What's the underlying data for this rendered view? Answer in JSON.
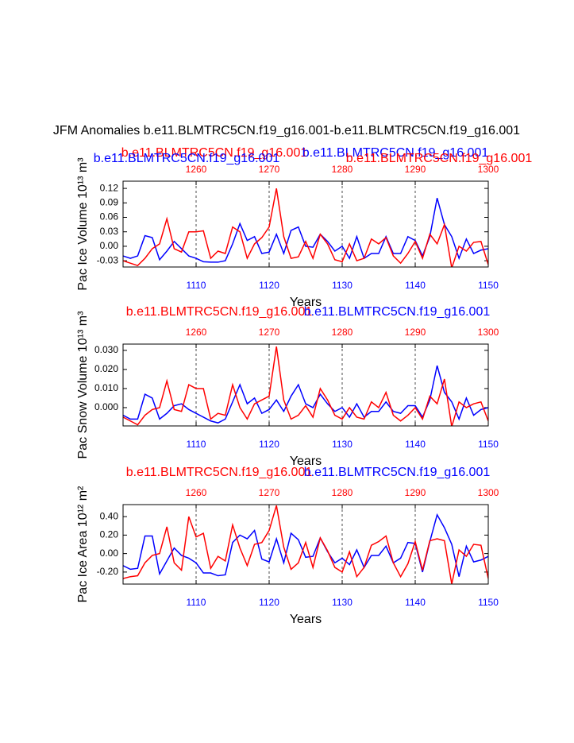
{
  "title": "JFM Anomalies b.e11.BLMTRC5CN.f19_g16.001-b.e11.BLMTRC5CN.f19_g16.001",
  "chart_data": [
    {
      "type": "line",
      "ylabel": "Pac Ice Volume 10¹³ m³",
      "xlabel": "Years",
      "xlim": [
        1100,
        1150
      ],
      "xticks": [
        1110,
        1120,
        1130,
        1140,
        1150
      ],
      "x2lim": [
        1250,
        1300
      ],
      "x2ticks": [
        1260,
        1270,
        1280,
        1290,
        1300
      ],
      "ylim": [
        -0.043,
        0.135
      ],
      "yticks": [
        0.12,
        0.09,
        0.06,
        0.03,
        {
          "value": 0,
          "label": "0.00"
        },
        -0.03
      ],
      "grid": "x",
      "annotations": [
        {
          "text": "b.e11.BLMTRC5CN.f19_g16.001",
          "color": "blue"
        },
        {
          "text": "b.e11.BLMTRC5CN.f19_g16.001",
          "color": "red"
        }
      ],
      "series": [
        {
          "name": "b.e11.BLMTRC5CN.f19_g16.001",
          "color": "blue",
          "axis": "x",
          "x": [
            1100,
            1101,
            1102,
            1103,
            1104,
            1105,
            1106,
            1107,
            1108,
            1109,
            1110,
            1111,
            1112,
            1113,
            1114,
            1115,
            1116,
            1117,
            1118,
            1119,
            1120,
            1121,
            1122,
            1123,
            1124,
            1125,
            1126,
            1127,
            1128,
            1129,
            1130,
            1131,
            1132,
            1133,
            1134,
            1135,
            1136,
            1137,
            1138,
            1139,
            1140,
            1141,
            1142,
            1143,
            1144,
            1145,
            1146,
            1147,
            1148,
            1149,
            1150
          ],
          "values": [
            -0.02,
            -0.025,
            -0.02,
            0.022,
            0.018,
            -0.028,
            -0.01,
            0.01,
            -0.005,
            -0.02,
            -0.025,
            -0.032,
            -0.033,
            -0.033,
            -0.03,
            0.005,
            0.047,
            0.012,
            0.02,
            -0.015,
            -0.012,
            0.025,
            -0.015,
            0.033,
            0.04,
            0.0,
            -0.002,
            0.025,
            0.01,
            -0.01,
            0.0,
            -0.025,
            0.02,
            -0.025,
            -0.015,
            -0.015,
            0.02,
            -0.015,
            -0.015,
            0.02,
            0.012,
            -0.02,
            0.02,
            0.1,
            0.045,
            0.02,
            -0.025,
            0.015,
            -0.015,
            -0.008,
            -0.005
          ]
        },
        {
          "name": "b.e11.BLMTRC5CN.f19_g16.001",
          "color": "red",
          "axis": "x2",
          "x": [
            1250,
            1251,
            1252,
            1253,
            1254,
            1255,
            1256,
            1257,
            1258,
            1259,
            1260,
            1261,
            1262,
            1263,
            1264,
            1265,
            1266,
            1267,
            1268,
            1269,
            1270,
            1271,
            1272,
            1273,
            1274,
            1275,
            1276,
            1277,
            1278,
            1279,
            1280,
            1281,
            1282,
            1283,
            1284,
            1285,
            1286,
            1287,
            1288,
            1289,
            1290,
            1291,
            1292,
            1293,
            1294,
            1295,
            1296,
            1297,
            1298,
            1299,
            1300
          ],
          "values": [
            -0.03,
            -0.035,
            -0.04,
            -0.025,
            -0.005,
            0.005,
            0.057,
            -0.005,
            -0.012,
            0.03,
            0.03,
            0.032,
            -0.025,
            -0.01,
            -0.015,
            0.04,
            0.03,
            -0.025,
            0.005,
            0.018,
            0.04,
            0.12,
            0.02,
            -0.025,
            -0.022,
            0.01,
            -0.025,
            0.025,
            0.005,
            -0.028,
            -0.032,
            0.005,
            -0.03,
            -0.025,
            0.015,
            0.005,
            0.018,
            -0.02,
            -0.035,
            -0.015,
            0.01,
            -0.025,
            0.025,
            0.005,
            0.045,
            -0.045,
            0.0,
            -0.01,
            0.008,
            0.01,
            -0.038
          ]
        }
      ]
    },
    {
      "type": "line",
      "ylabel": "Pac Snow Volume 10¹³ m³",
      "xlabel": "Years",
      "xlim": [
        1100,
        1150
      ],
      "xticks": [
        1110,
        1120,
        1130,
        1140,
        1150
      ],
      "x2lim": [
        1250,
        1300
      ],
      "x2ticks": [
        1260,
        1270,
        1280,
        1290,
        1300
      ],
      "ylim": [
        -0.0096,
        0.0333
      ],
      "yticks": [
        {
          "value": 0.03,
          "label": "0.030"
        },
        {
          "value": 0.02,
          "label": "0.020"
        },
        {
          "value": 0.01,
          "label": "0.010"
        },
        {
          "value": 0,
          "label": "0.000"
        }
      ],
      "grid": "x",
      "series": [
        {
          "name": "b.e11.BLMTRC5CN.f19_g16.001",
          "color": "blue",
          "axis": "x",
          "x": [
            1100,
            1101,
            1102,
            1103,
            1104,
            1105,
            1106,
            1107,
            1108,
            1109,
            1110,
            1111,
            1112,
            1113,
            1114,
            1115,
            1116,
            1117,
            1118,
            1119,
            1120,
            1121,
            1122,
            1123,
            1124,
            1125,
            1126,
            1127,
            1128,
            1129,
            1130,
            1131,
            1132,
            1133,
            1134,
            1135,
            1136,
            1137,
            1138,
            1139,
            1140,
            1141,
            1142,
            1143,
            1144,
            1145,
            1146,
            1147,
            1148,
            1149,
            1150
          ],
          "values": [
            -0.004,
            -0.006,
            -0.006,
            0.007,
            0.005,
            -0.006,
            -0.003,
            0.001,
            0.002,
            -0.001,
            -0.003,
            -0.005,
            -0.007,
            -0.008,
            -0.006,
            0.003,
            0.012,
            0.002,
            0.005,
            -0.003,
            -0.001,
            0.004,
            -0.002,
            0.006,
            0.012,
            0.002,
            0.0,
            0.007,
            0.002,
            -0.002,
            0.0,
            -0.005,
            0.002,
            -0.005,
            -0.002,
            -0.002,
            0.003,
            -0.002,
            -0.003,
            0.001,
            0.001,
            -0.005,
            0.004,
            0.022,
            0.008,
            0.003,
            -0.006,
            0.005,
            -0.004,
            -0.001,
            0.0
          ]
        },
        {
          "name": "b.e11.BLMTRC5CN.f19_g16.001",
          "color": "red",
          "axis": "x2",
          "x": [
            1250,
            1251,
            1252,
            1253,
            1254,
            1255,
            1256,
            1257,
            1258,
            1259,
            1260,
            1261,
            1262,
            1263,
            1264,
            1265,
            1266,
            1267,
            1268,
            1269,
            1270,
            1271,
            1272,
            1273,
            1274,
            1275,
            1276,
            1277,
            1278,
            1279,
            1280,
            1281,
            1282,
            1283,
            1284,
            1285,
            1286,
            1287,
            1288,
            1289,
            1290,
            1291,
            1292,
            1293,
            1294,
            1295,
            1296,
            1297,
            1298,
            1299,
            1300
          ],
          "values": [
            -0.005,
            -0.007,
            -0.009,
            -0.004,
            -0.001,
            0.0,
            0.014,
            -0.001,
            -0.002,
            0.012,
            0.01,
            0.01,
            -0.006,
            -0.003,
            -0.004,
            0.012,
            0.0,
            -0.006,
            0.002,
            0.004,
            0.006,
            0.032,
            0.004,
            -0.006,
            -0.004,
            0.001,
            -0.005,
            0.01,
            0.004,
            -0.004,
            -0.006,
            0.0,
            -0.005,
            -0.006,
            0.003,
            0.0,
            0.008,
            -0.004,
            -0.007,
            -0.004,
            0.0,
            -0.006,
            0.006,
            0.002,
            0.015,
            -0.01,
            0.003,
            0.0,
            0.002,
            0.003,
            -0.007
          ]
        }
      ]
    },
    {
      "type": "line",
      "ylabel": "Pac Ice Area 10¹² m²",
      "xlabel": "Years",
      "xlim": [
        1100,
        1150
      ],
      "xticks": [
        1110,
        1120,
        1130,
        1140,
        1150
      ],
      "x2lim": [
        1250,
        1300
      ],
      "x2ticks": [
        1260,
        1270,
        1280,
        1290,
        1300
      ],
      "ylim": [
        -0.33,
        0.53
      ],
      "yticks": [
        {
          "value": 0.4,
          "label": "0.40"
        },
        {
          "value": 0.2,
          "label": "0.20"
        },
        {
          "value": 0,
          "label": "0.00"
        },
        {
          "value": -0.2,
          "label": "-0.20"
        }
      ],
      "grid": "x",
      "series": [
        {
          "name": "b.e11.BLMTRC5CN.f19_g16.001",
          "color": "blue",
          "axis": "x",
          "x": [
            1100,
            1101,
            1102,
            1103,
            1104,
            1105,
            1106,
            1107,
            1108,
            1109,
            1110,
            1111,
            1112,
            1113,
            1114,
            1115,
            1116,
            1117,
            1118,
            1119,
            1120,
            1121,
            1122,
            1123,
            1124,
            1125,
            1126,
            1127,
            1128,
            1129,
            1130,
            1131,
            1132,
            1133,
            1134,
            1135,
            1136,
            1137,
            1138,
            1139,
            1140,
            1141,
            1142,
            1143,
            1144,
            1145,
            1146,
            1147,
            1148,
            1149,
            1150
          ],
          "values": [
            -0.13,
            -0.17,
            -0.16,
            0.19,
            0.19,
            -0.22,
            -0.08,
            0.06,
            -0.02,
            -0.05,
            -0.1,
            -0.21,
            -0.21,
            -0.24,
            -0.23,
            0.12,
            0.2,
            0.16,
            0.25,
            -0.06,
            -0.09,
            0.16,
            -0.1,
            0.22,
            0.15,
            -0.04,
            -0.03,
            0.17,
            0.02,
            -0.1,
            -0.05,
            -0.12,
            0.04,
            -0.15,
            -0.02,
            -0.02,
            0.08,
            -0.1,
            -0.05,
            0.12,
            0.11,
            -0.2,
            0.13,
            0.42,
            0.28,
            0.1,
            -0.25,
            0.08,
            -0.09,
            -0.07,
            -0.03
          ]
        },
        {
          "name": "b.e11.BLMTRC5CN.f19_g16.001",
          "color": "red",
          "axis": "x2",
          "x": [
            1250,
            1251,
            1252,
            1253,
            1254,
            1255,
            1256,
            1257,
            1258,
            1259,
            1260,
            1261,
            1262,
            1263,
            1264,
            1265,
            1266,
            1267,
            1268,
            1269,
            1270,
            1271,
            1272,
            1273,
            1274,
            1275,
            1276,
            1277,
            1278,
            1279,
            1280,
            1281,
            1282,
            1283,
            1284,
            1285,
            1286,
            1287,
            1288,
            1289,
            1290,
            1291,
            1292,
            1293,
            1294,
            1295,
            1296,
            1297,
            1298,
            1299,
            1300
          ],
          "values": [
            -0.27,
            -0.25,
            -0.24,
            -0.1,
            -0.02,
            0.0,
            0.29,
            -0.1,
            -0.18,
            0.4,
            0.18,
            0.22,
            -0.16,
            -0.03,
            -0.08,
            0.31,
            0.06,
            -0.13,
            0.1,
            0.12,
            0.25,
            0.52,
            0.07,
            -0.17,
            -0.1,
            0.12,
            -0.15,
            0.17,
            0.03,
            -0.15,
            -0.2,
            0.02,
            -0.25,
            -0.15,
            0.09,
            0.13,
            0.19,
            -0.1,
            -0.25,
            -0.11,
            0.13,
            -0.18,
            0.14,
            0.16,
            0.14,
            -0.33,
            0.04,
            -0.03,
            0.1,
            0.09,
            -0.27
          ]
        }
      ]
    }
  ]
}
